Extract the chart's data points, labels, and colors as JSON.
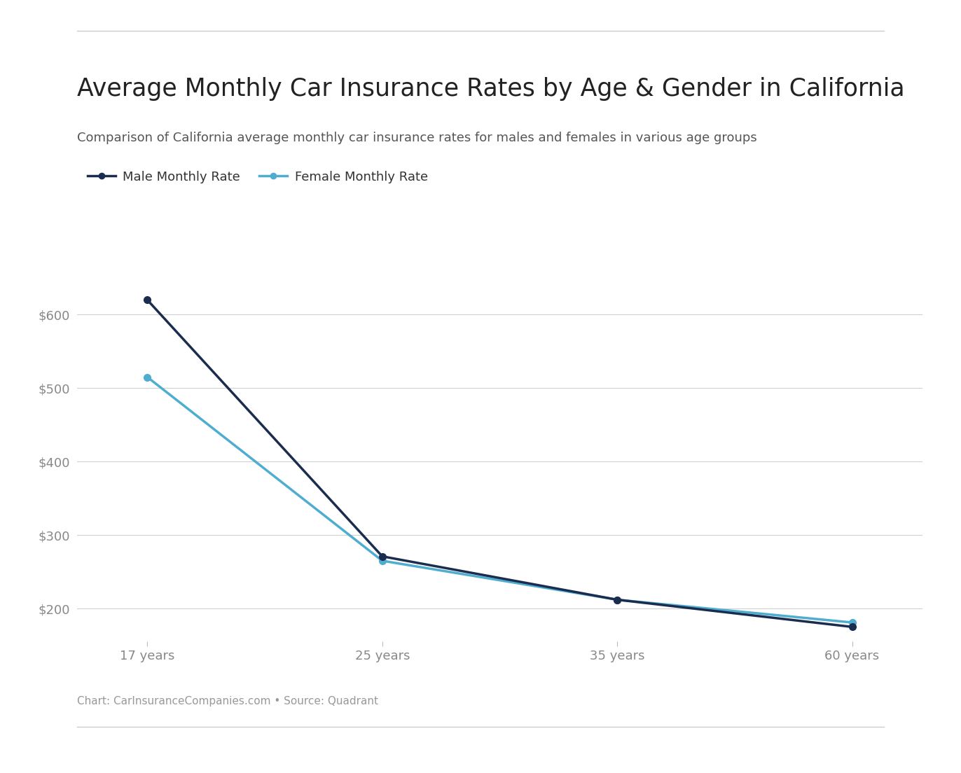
{
  "title": "Average Monthly Car Insurance Rates by Age & Gender in California",
  "subtitle": "Comparison of California average monthly car insurance rates for males and females in various age groups",
  "caption": "Chart: CarInsuranceCompanies.com • Source: Quadrant",
  "ages": [
    0,
    1,
    2,
    3
  ],
  "age_labels": [
    "17 years",
    "25 years",
    "35 years",
    "60 years"
  ],
  "male_rates": [
    620,
    271,
    212,
    175
  ],
  "female_rates": [
    515,
    265,
    212,
    181
  ],
  "male_color": "#1b2d4e",
  "female_color": "#4fadd0",
  "ytick_values": [
    200,
    300,
    400,
    500,
    600
  ],
  "ytick_labels": [
    "$200",
    "$300",
    "$400",
    "$500",
    "$600"
  ],
  "ylim_min": 155,
  "ylim_max": 660,
  "background_color": "#ffffff",
  "grid_color": "#d0d0d0",
  "title_fontsize": 25,
  "subtitle_fontsize": 13,
  "tick_label_fontsize": 13,
  "legend_fontsize": 13,
  "caption_fontsize": 11,
  "legend_male_label": "Male Monthly Rate",
  "legend_female_label": "Female Monthly Rate"
}
